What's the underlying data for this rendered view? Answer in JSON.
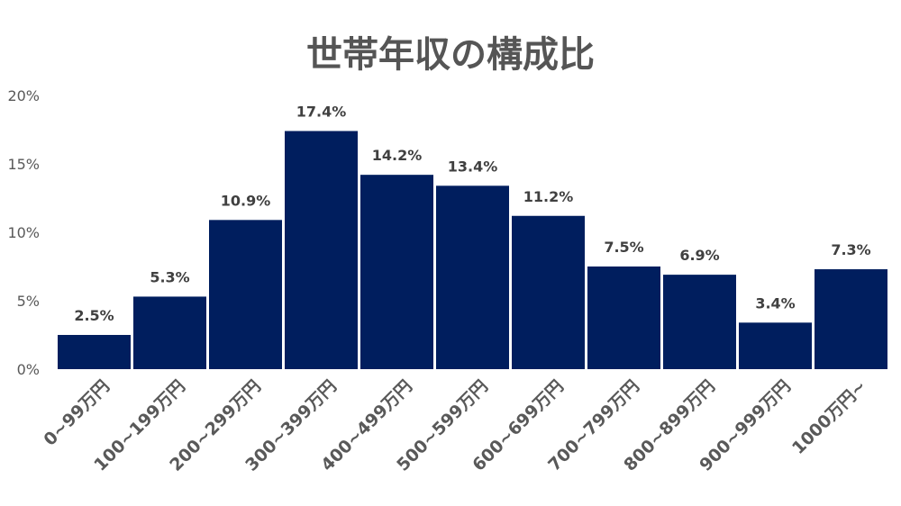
{
  "chart_data": {
    "type": "bar",
    "title": "世帯年収の構成比",
    "xlabel": "",
    "ylabel": "",
    "categories": [
      "0~99万円",
      "100~199万円",
      "200~299万円",
      "300~399万円",
      "400~499万円",
      "500~599万円",
      "600~699万円",
      "700~799万円",
      "800~899万円",
      "900~999万円",
      "1000万円~"
    ],
    "values": [
      2.5,
      5.3,
      10.9,
      17.4,
      14.2,
      13.4,
      11.2,
      7.5,
      6.9,
      3.4,
      7.3
    ],
    "value_labels": [
      "2.5%",
      "5.3%",
      "10.9%",
      "17.4%",
      "14.2%",
      "13.4%",
      "11.2%",
      "7.5%",
      "6.9%",
      "3.4%",
      "7.3%"
    ],
    "y_ticks": [
      0,
      5,
      10,
      15,
      20
    ],
    "y_tick_labels": [
      "0%",
      "5%",
      "10%",
      "15%",
      "20%"
    ],
    "ylim": [
      0,
      20
    ],
    "grid": false,
    "legend": "none",
    "bar_color": "#001e5e"
  }
}
